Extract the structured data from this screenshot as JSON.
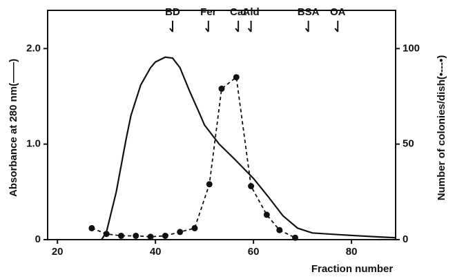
{
  "chart_data": {
    "type": "line",
    "x_label": "Fraction number",
    "y_label": "Absorbance at 280 nm(——)",
    "y2_label": "Number of colonies/dish(•---•)",
    "xlim": [
      18,
      89
    ],
    "xticks": [
      20,
      40,
      60,
      80
    ],
    "ylim": [
      0,
      2.4
    ],
    "yticks": [
      0,
      {
        "value": 1,
        "label": "1.0"
      },
      {
        "value": 2,
        "label": "2.0"
      }
    ],
    "y2lim": [
      0,
      120
    ],
    "y2ticks": [
      0,
      50,
      100
    ],
    "markers": [
      {
        "label": "BD",
        "x": 43.5
      },
      {
        "label": "Fer",
        "x": 50.8
      },
      {
        "label": "Cat",
        "x": 56.9
      },
      {
        "label": "Ald",
        "x": 59.5
      },
      {
        "label": "BSA",
        "x": 71.2
      },
      {
        "label": "OA",
        "x": 77.2
      }
    ],
    "series": [
      {
        "color": "#111111",
        "style": "solid",
        "x": [
          29,
          30,
          32,
          34,
          35,
          37,
          39,
          40,
          42,
          43.5,
          45,
          47,
          49,
          50,
          53,
          56,
          60,
          63,
          66,
          69,
          72,
          78,
          85,
          89
        ],
        "values": [
          0,
          0.08,
          0.5,
          1.05,
          1.3,
          1.62,
          1.8,
          1.86,
          1.91,
          1.9,
          1.8,
          1.55,
          1.32,
          1.2,
          1.0,
          0.85,
          0.64,
          0.45,
          0.25,
          0.12,
          0.07,
          0.05,
          0.03,
          0.02
        ]
      },
      {
        "color": "#111111",
        "style": "dashed",
        "markers": true,
        "axis": "y2",
        "x": [
          27,
          30,
          33,
          36,
          39,
          42,
          45,
          48,
          51,
          53.5,
          56.5,
          59.5,
          62.7,
          65.3,
          68.5
        ],
        "values": [
          6,
          3,
          2,
          2,
          1.5,
          2,
          4,
          6,
          29,
          79,
          85,
          28,
          13,
          5,
          1
        ]
      }
    ]
  }
}
